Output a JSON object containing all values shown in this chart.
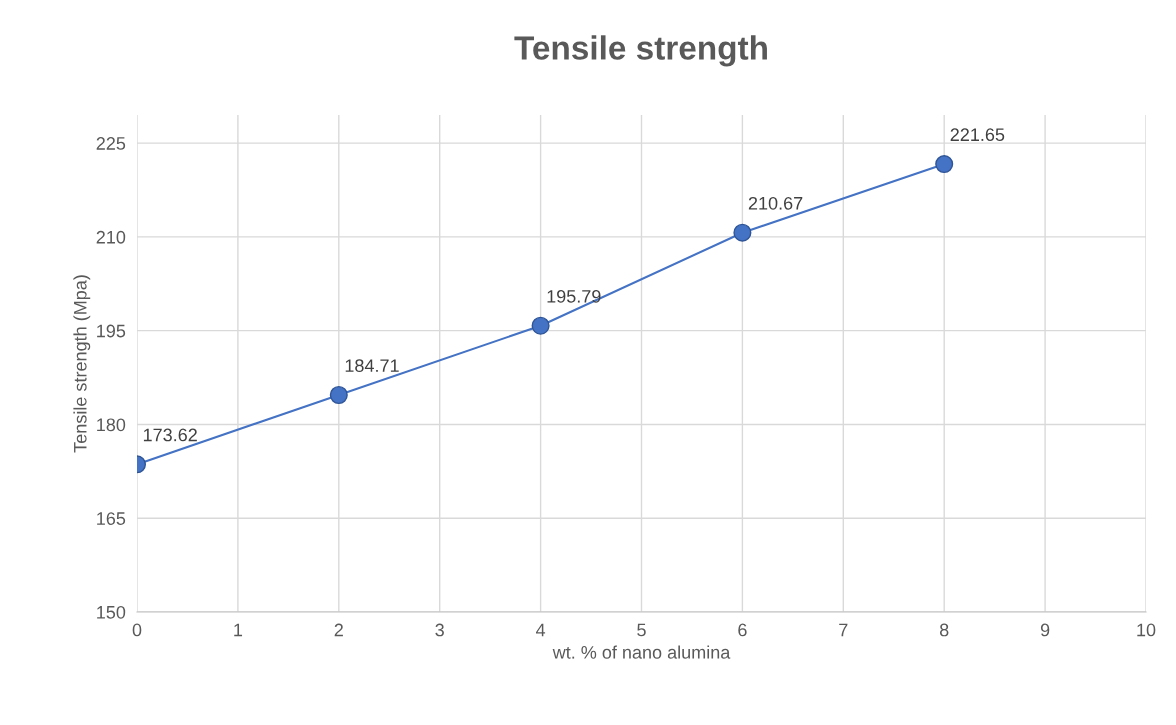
{
  "chart_data": {
    "type": "line",
    "title": "Tensile strength",
    "xlabel": "wt. % of nano alumina",
    "ylabel": "Tensile strength (Mpa)",
    "x": [
      0,
      2,
      4,
      6,
      8
    ],
    "series": [
      {
        "color": "#4472c4",
        "values": [
          173.62,
          184.71,
          195.79,
          210.67,
          221.65
        ]
      }
    ],
    "xlim": [
      0,
      10
    ],
    "xticks": [
      0,
      1,
      2,
      3,
      4,
      5,
      6,
      7,
      8,
      9,
      10
    ],
    "ylim": [
      150,
      229.5
    ],
    "yticks": [
      150,
      165,
      180,
      195,
      210,
      225
    ],
    "grid": true,
    "marker": "circle",
    "line_style": "solid",
    "data_labels": true
  }
}
